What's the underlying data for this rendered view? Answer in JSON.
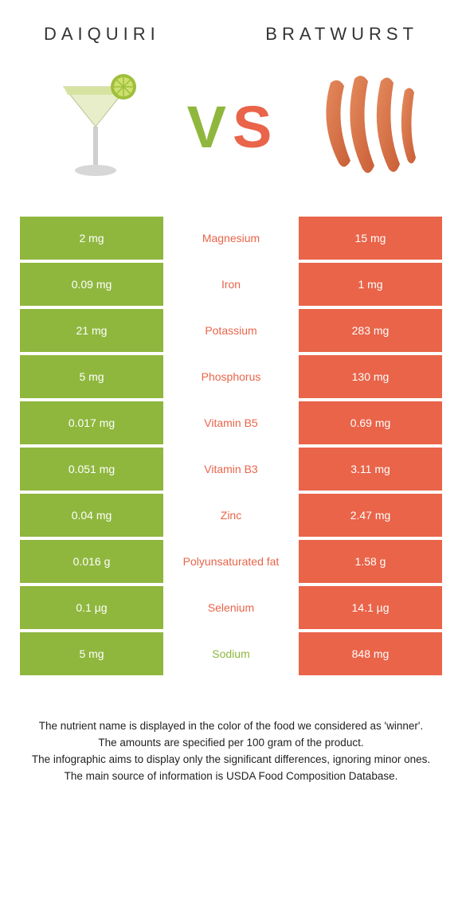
{
  "colors": {
    "left": "#8fb73e",
    "right": "#e96449",
    "mid_winner_left": "#8fb73e",
    "mid_winner_right": "#e96449"
  },
  "header": {
    "left_title": "DAIQUIRI",
    "right_title": "BRATWURST",
    "vs_v_color": "#8fb73e",
    "vs_s_color": "#e96449"
  },
  "rows": [
    {
      "left": "2 mg",
      "label": "Magnesium",
      "right": "15 mg",
      "winner": "right"
    },
    {
      "left": "0.09 mg",
      "label": "Iron",
      "right": "1 mg",
      "winner": "right"
    },
    {
      "left": "21 mg",
      "label": "Potassium",
      "right": "283 mg",
      "winner": "right"
    },
    {
      "left": "5 mg",
      "label": "Phosphorus",
      "right": "130 mg",
      "winner": "right"
    },
    {
      "left": "0.017 mg",
      "label": "Vitamin B5",
      "right": "0.69 mg",
      "winner": "right"
    },
    {
      "left": "0.051 mg",
      "label": "Vitamin B3",
      "right": "3.11 mg",
      "winner": "right"
    },
    {
      "left": "0.04 mg",
      "label": "Zinc",
      "right": "2.47 mg",
      "winner": "right"
    },
    {
      "left": "0.016 g",
      "label": "Polyunsaturated fat",
      "right": "1.58 g",
      "winner": "right"
    },
    {
      "left": "0.1 µg",
      "label": "Selenium",
      "right": "14.1 µg",
      "winner": "right"
    },
    {
      "left": "5 mg",
      "label": "Sodium",
      "right": "848 mg",
      "winner": "left"
    }
  ],
  "footer": {
    "line1": "The nutrient name is displayed in the color of the food we considered as 'winner'.",
    "line2": "The amounts are specified per 100 gram of the product.",
    "line3": "The infographic aims to display only the significant differences, ignoring minor ones.",
    "line4": "The main source of information is USDA Food Composition Database."
  }
}
